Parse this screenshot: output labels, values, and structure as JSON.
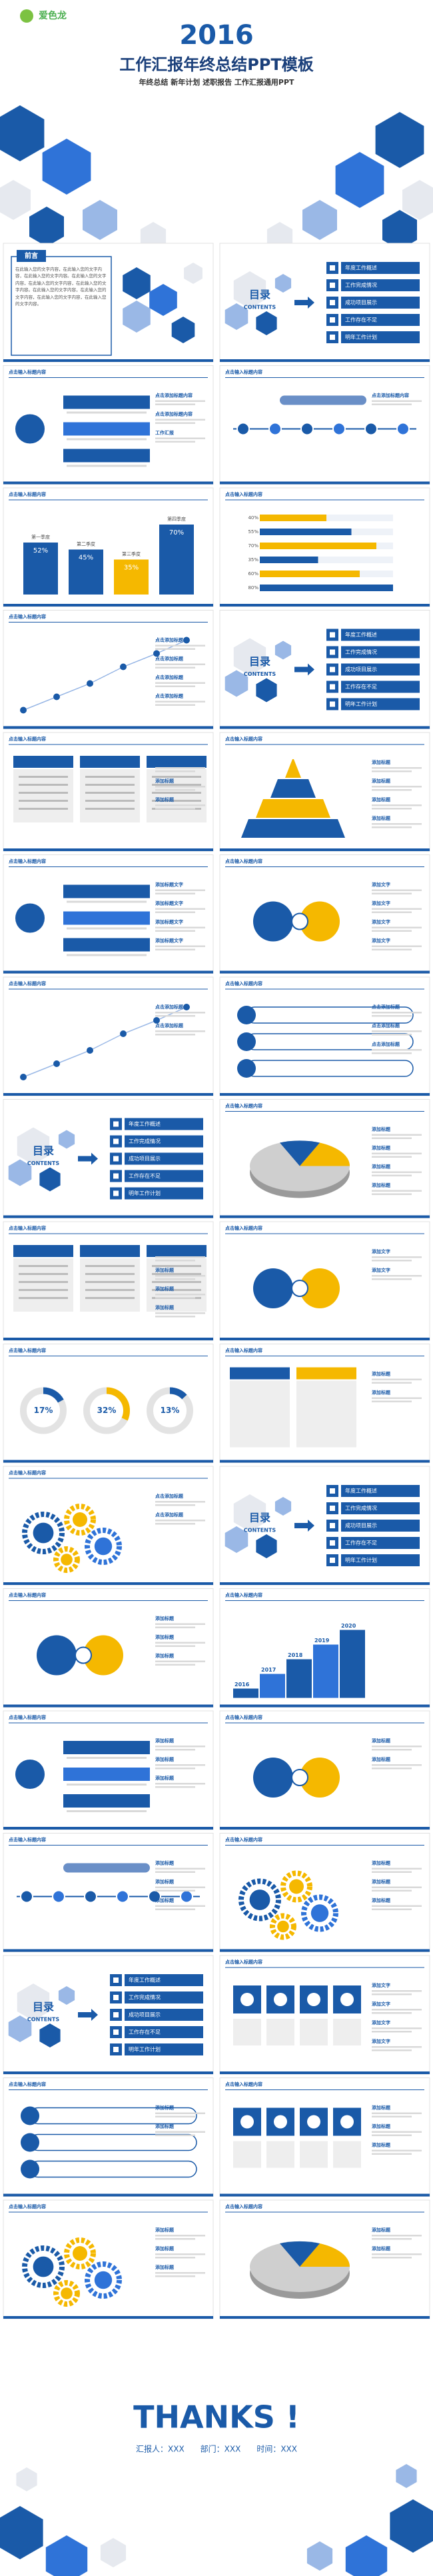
{
  "cover": {
    "logo": "爱色龙",
    "year": "2016",
    "title": "工作汇报年终总结PPT模板",
    "subtitle": "年终总结 新年计划 述职报告 工作汇报通用PPT"
  },
  "slides": [
    {
      "heading": "前言",
      "body": "在此输入您的文字内容，在此输入您的文字内容，在此输入您的文字内容。在此输入您的文字内容，在此输入您的文字内容，在此输入您的文字内容。在此输入您的文字内容，在此输入您的文字内容，在此输入您的文字内容，在此输入您的文字内容。"
    },
    {
      "title": "目录",
      "subtitle": "CONTENTS",
      "items": [
        "年度工作概述",
        "工作完成情况",
        "成功项目展示",
        "工作存在不足",
        "明年工作计划"
      ]
    },
    {
      "title": "点击输入标题内容",
      "labels": [
        "点击添加标题内容",
        "点击添加标题内容",
        "工作汇报"
      ]
    },
    {
      "title": "点击输入标题内容",
      "labels": [
        "点击添加标题内容"
      ]
    },
    {
      "title": "点击输入标题内容",
      "categories": [
        "第一季度",
        "第二季度",
        "第三季度",
        "第四季度"
      ],
      "values": [
        52,
        45,
        35,
        70
      ],
      "value_labels": [
        "52%",
        "45%",
        "35%",
        "70%"
      ]
    },
    {
      "title": "点击输入标题内容",
      "values": [
        40,
        55,
        70,
        35,
        60,
        80
      ],
      "value_labels": [
        "40%",
        "55%",
        "70%",
        "35%",
        "60%",
        "80%"
      ]
    },
    {
      "title": "点击输入标题内容",
      "labels": [
        "点击添加标题",
        "点击添加标题",
        "点击添加标题",
        "点击添加标题"
      ]
    },
    {
      "title": "目录",
      "subtitle": "CONTENTS",
      "items": [
        "年度工作概述",
        "工作完成情况",
        "成功项目展示",
        "工作存在不足",
        "明年工作计划"
      ]
    },
    {
      "title": "点击输入标题内容",
      "labels": [
        "添加标题",
        "添加标题",
        "添加标题"
      ]
    },
    {
      "title": "点击输入标题内容",
      "labels": [
        "添加标题",
        "添加标题",
        "添加标题",
        "添加标题"
      ]
    },
    {
      "title": "点击输入标题内容",
      "labels": [
        "添加标题文字",
        "添加标题文字",
        "添加标题文字",
        "添加标题文字"
      ]
    },
    {
      "title": "点击输入标题内容",
      "labels": [
        "添加文字",
        "添加文字",
        "添加文字",
        "添加文字"
      ]
    },
    {
      "title": "点击输入标题内容",
      "labels": [
        "点击添加标题",
        "点击添加标题"
      ]
    },
    {
      "title": "点击输入标题内容",
      "labels": [
        "点击添加标题",
        "点击添加标题",
        "点击添加标题"
      ]
    },
    {
      "title": "目录",
      "subtitle": "CONTENTS",
      "items": [
        "年度工作概述",
        "工作完成情况",
        "成功项目展示",
        "工作存在不足",
        "明年工作计划"
      ]
    },
    {
      "title": "点击输入标题内容",
      "labels": [
        "添加标题",
        "添加标题",
        "添加标题",
        "添加标题"
      ]
    },
    {
      "title": "点击输入标题内容",
      "labels": [
        "添加标题",
        "添加标题",
        "添加标题",
        "添加标题"
      ]
    },
    {
      "title": "点击输入标题内容",
      "labels": [
        "添加文字",
        "添加文字"
      ]
    },
    {
      "title": "点击输入标题内容",
      "values": [
        17,
        32,
        13
      ],
      "value_labels": [
        "17%",
        "32%",
        "13%"
      ]
    },
    {
      "title": "点击输入标题内容",
      "labels": [
        "添加标题",
        "添加标题"
      ]
    },
    {
      "title": "点击输入标题内容",
      "labels": [
        "点击添加标题",
        "点击添加标题"
      ]
    },
    {
      "title": "目录",
      "subtitle": "CONTENTS",
      "items": [
        "年度工作概述",
        "工作完成情况",
        "成功项目展示",
        "工作存在不足",
        "明年工作计划"
      ]
    },
    {
      "title": "点击输入标题内容",
      "labels": [
        "添加标题",
        "添加标题",
        "添加标题"
      ]
    },
    {
      "title": "点击输入标题内容",
      "categories": [
        "2016",
        "2017",
        "2018",
        "2019",
        "2020"
      ]
    },
    {
      "title": "点击输入标题内容",
      "labels": [
        "添加标题",
        "添加标题",
        "添加标题"
      ]
    },
    {
      "title": "点击输入标题内容",
      "labels": [
        "添加标题",
        "添加标题"
      ]
    },
    {
      "title": "点击输入标题内容",
      "labels": [
        "添加标题",
        "添加标题",
        "添加标题"
      ]
    },
    {
      "title": "点击输入标题内容",
      "labels": [
        "添加标题",
        "添加标题",
        "添加标题"
      ]
    },
    {
      "title": "目录",
      "subtitle": "CONTENTS",
      "items": [
        "年度工作概述",
        "工作完成情况",
        "成功项目展示",
        "工作存在不足",
        "明年工作计划"
      ]
    },
    {
      "title": "点击输入标题内容",
      "labels": [
        "添加文字",
        "添加文字",
        "添加文字",
        "添加文字"
      ]
    },
    {
      "title": "点击输入标题内容",
      "labels": [
        "添加标题",
        "添加标题"
      ]
    },
    {
      "title": "点击输入标题内容",
      "labels": [
        "添加标题",
        "添加标题",
        "添加标题"
      ]
    },
    {
      "title": "点击输入标题内容",
      "labels": [
        "添加标题",
        "添加标题",
        "添加标题"
      ]
    },
    {
      "title": "点击输入标题内容",
      "labels": [
        "添加标题",
        "添加标题"
      ]
    }
  ],
  "ending": {
    "title": "THANKS !",
    "info": "汇报人：XXX　　部门：XXX　　时间：XXX"
  }
}
